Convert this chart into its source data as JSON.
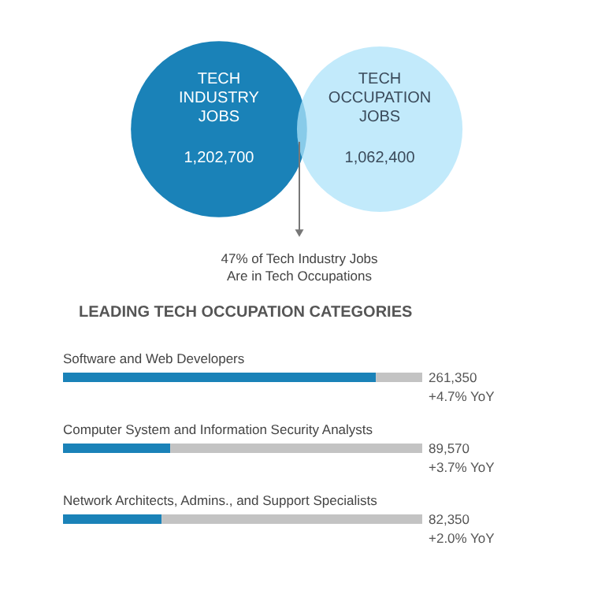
{
  "chart_data": [
    {
      "type": "other",
      "categories": [
        "TECH INDUSTRY JOBS",
        "TECH OCCUPATION JOBS"
      ],
      "values": [
        1202700,
        1062400
      ],
      "value_labels": [
        "1,202,700",
        "1,062,400"
      ],
      "colors": [
        "#1a82b8",
        "#aee3fa"
      ],
      "annotations": [
        "47% of Tech Industry Jobs\nAre in Tech Occupations"
      ]
    },
    {
      "type": "bar",
      "orientation": "horizontal",
      "stacked": true,
      "title": "LEADING TECH OCCUPATION CATEGORIES",
      "categories": [
        "Software and Web Developers",
        "Computer System and Information Security Analysts",
        "Network Architects, Admins., and Support Specialists"
      ],
      "xlim": [
        0,
        300000
      ],
      "series": [
        {
          "color": "#1a82b8",
          "values": [
            261350,
            89570,
            82350
          ],
          "value_labels": [
            "261,350\n+4.7% YoY",
            "89,570\n+3.7% YoY",
            "82,350\n+2.0% YoY"
          ]
        },
        {
          "color": "#c3c3c3",
          "values": [
            38650,
            210430,
            217650
          ]
        }
      ]
    }
  ]
}
